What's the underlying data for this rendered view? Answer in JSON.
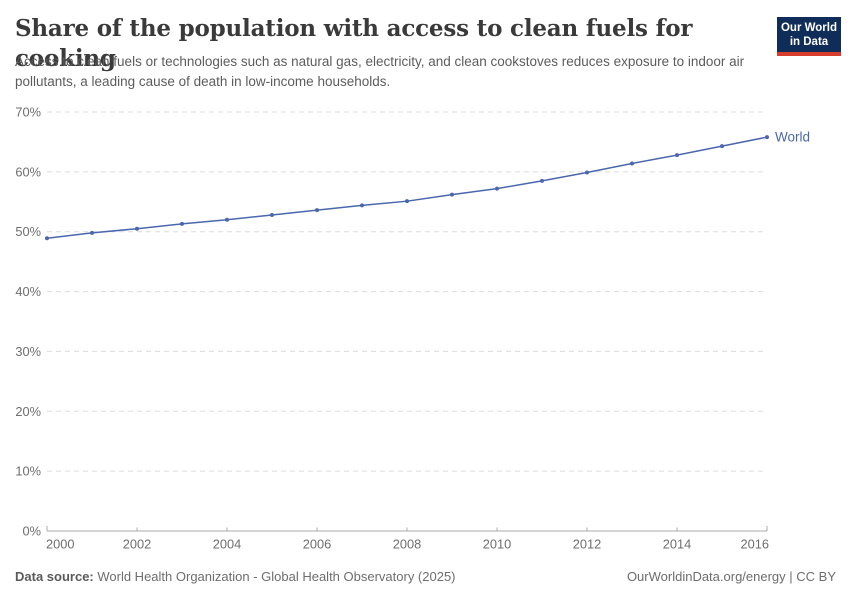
{
  "header": {
    "title": "Share of the population with access to clean fuels for cooking",
    "subtitle": "Access to clean fuels or technologies such as natural gas, electricity, and clean cookstoves reduces exposure to indoor air pollutants, a leading cause of death in low-income households.",
    "logo": {
      "line1": "Our World",
      "line2": "in Data",
      "bg_color": "#102d59",
      "stripe_color": "#d73c2c"
    }
  },
  "chart_data": {
    "type": "line",
    "title": "Share of the population with access to clean fuels for cooking",
    "xlabel": "",
    "ylabel": "",
    "x": [
      2000,
      2001,
      2002,
      2003,
      2004,
      2005,
      2006,
      2007,
      2008,
      2009,
      2010,
      2011,
      2012,
      2013,
      2014,
      2015,
      2016
    ],
    "series": [
      {
        "name": "World",
        "color": "#4a67ad",
        "values": [
          48.9,
          49.8,
          50.5,
          51.3,
          52.0,
          52.8,
          53.6,
          54.4,
          55.1,
          56.2,
          57.2,
          58.5,
          59.9,
          61.4,
          62.8,
          64.3,
          65.8
        ]
      }
    ],
    "xlim": [
      2000,
      2016
    ],
    "ylim": [
      0,
      70
    ],
    "x_ticks": [
      2000,
      2002,
      2004,
      2006,
      2008,
      2010,
      2012,
      2014,
      2016
    ],
    "y_ticks": [
      0,
      10,
      20,
      30,
      40,
      50,
      60,
      70
    ],
    "y_tick_suffix": "%",
    "grid": "horizontal-dashed",
    "legend_position": "end-of-line",
    "end_label": "World"
  },
  "footer": {
    "datasource_label": "Data source:",
    "datasource_value": " World Health Organization - Global Health Observatory (2025)",
    "credit": "OurWorldinData.org/energy | CC BY"
  },
  "colors": {
    "line": "#4a67ad",
    "gridline": "#dcdcdc",
    "axis": "#a8a8a8",
    "tick_label": "#6e6e6e",
    "title_text": "#3a3a3a",
    "subtitle_text": "#5c5c5c",
    "footer_text": "#6d6d6d"
  }
}
